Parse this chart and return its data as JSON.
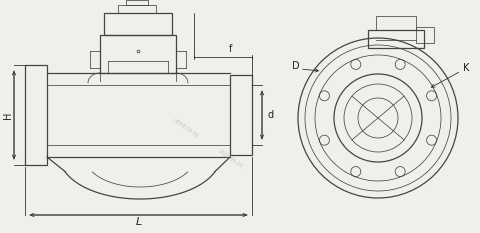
{
  "bg_color": "#f0f0eb",
  "line_color": "#444444",
  "dim_color": "#222222",
  "fig_width": 4.8,
  "fig_height": 2.33,
  "dpi": 100,
  "label_f": "f",
  "label_d": "d",
  "label_H": "H",
  "label_L": "L",
  "label_D": "D",
  "label_K": "K",
  "watermark1": "2020-09-23",
  "watermark2": "HEBB.C6.88",
  "lw_main": 0.9,
  "lw_thin": 0.55,
  "lw_dim": 0.55
}
